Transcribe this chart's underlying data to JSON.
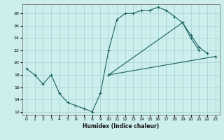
{
  "xlabel": "Humidex (Indice chaleur)",
  "background_color": "#cceeed",
  "grid_color": "#aad4d4",
  "line_color": "#1a6060",
  "xlim": [
    -0.5,
    23.5
  ],
  "ylim": [
    11.5,
    29.5
  ],
  "xticks": [
    0,
    1,
    2,
    3,
    4,
    5,
    6,
    7,
    8,
    9,
    10,
    11,
    12,
    13,
    14,
    15,
    16,
    17,
    18,
    19,
    20,
    21,
    22,
    23
  ],
  "yticks": [
    12,
    14,
    16,
    18,
    20,
    22,
    24,
    26,
    28
  ],
  "series": [
    {
      "x": [
        0,
        1,
        2,
        3,
        4,
        5,
        6,
        7,
        8,
        9,
        10,
        11,
        12,
        13,
        14,
        15,
        16,
        17,
        18,
        19,
        20,
        21
      ],
      "y": [
        19.0,
        18.0,
        16.5,
        18.0,
        15.0,
        13.5,
        13.0,
        12.5,
        12.0,
        15.0,
        22.0,
        27.0,
        28.0,
        28.0,
        28.5,
        28.5,
        29.0,
        28.5,
        27.5,
        26.5,
        24.0,
        22.0
      ]
    },
    {
      "x": [
        10,
        19,
        20,
        21,
        22
      ],
      "y": [
        18.0,
        26.5,
        24.5,
        22.5,
        21.5
      ]
    },
    {
      "x": [
        10,
        23
      ],
      "y": [
        18.0,
        21.0
      ]
    }
  ]
}
